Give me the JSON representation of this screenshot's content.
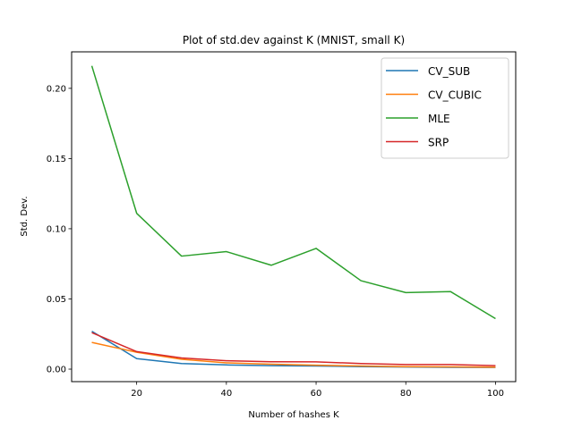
{
  "chart_data": {
    "type": "line",
    "title": "Plot of std.dev against K (MNIST, small K)",
    "xlabel": "Number of hashes K",
    "ylabel": "Std. Dev.",
    "xlim": [
      5.5,
      104.5
    ],
    "ylim": [
      -0.0089,
      0.226
    ],
    "xticks": [
      20,
      40,
      60,
      80,
      100
    ],
    "xtick_labels": [
      "20",
      "40",
      "60",
      "80",
      "100"
    ],
    "yticks": [
      0.0,
      0.05,
      0.1,
      0.15,
      0.2
    ],
    "ytick_labels": [
      "0.00",
      "0.05",
      "0.10",
      "0.15",
      "0.20"
    ],
    "grid": false,
    "legend_position": "top-right",
    "x": [
      10,
      20,
      30,
      40,
      50,
      60,
      70,
      80,
      90,
      100
    ],
    "series": [
      {
        "name": "CV_SUB",
        "color": "#1f77b4",
        "values": [
          0.027,
          0.0075,
          0.004,
          0.003,
          0.0025,
          0.0022,
          0.0018,
          0.0015,
          0.0013,
          0.0012
        ]
      },
      {
        "name": "CV_CUBIC",
        "color": "#ff7f0e",
        "values": [
          0.019,
          0.012,
          0.007,
          0.0045,
          0.0035,
          0.0028,
          0.0022,
          0.0018,
          0.0016,
          0.0014
        ]
      },
      {
        "name": "MLE",
        "color": "#2ca02c",
        "values": [
          0.216,
          0.111,
          0.0805,
          0.0837,
          0.074,
          0.086,
          0.063,
          0.0545,
          0.0552,
          0.036
        ]
      },
      {
        "name": "SRP",
        "color": "#d62728",
        "values": [
          0.026,
          0.0125,
          0.008,
          0.006,
          0.0053,
          0.0052,
          0.004,
          0.0033,
          0.0033,
          0.0025
        ]
      }
    ]
  }
}
